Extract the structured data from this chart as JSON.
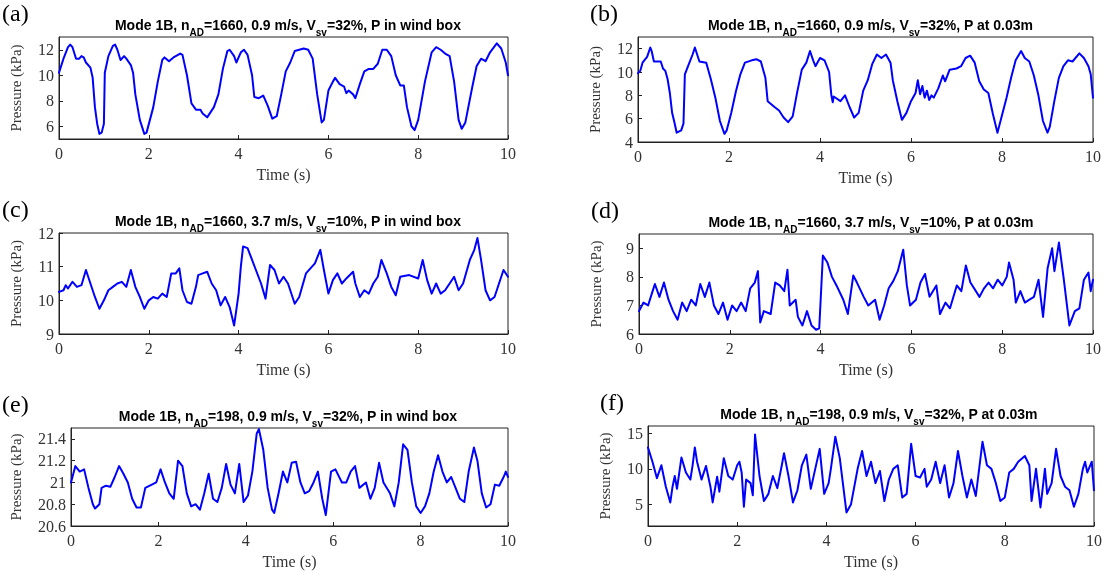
{
  "chart_data": [
    {
      "type": "line",
      "title": "Mode 1B, n$_{AD}$=1660, 0.9 m/s, V$_{sv}$=32%, P in wind box",
      "annotations": [
        "(a)"
      ],
      "xlabel": "Time (s)",
      "ylabel": "Pressure (kPa)",
      "xlim": [
        0,
        10
      ],
      "xticks": [
        0,
        2,
        4,
        6,
        8,
        10
      ],
      "ylim": [
        5,
        13
      ],
      "yticks": [
        6,
        8,
        10,
        12
      ],
      "grid": false,
      "color": "#0000ff",
      "x": [
        0,
        0.1,
        0.2,
        0.25,
        0.3,
        0.38,
        0.45,
        0.5,
        0.55,
        0.6,
        0.7,
        0.75,
        0.8,
        0.85,
        0.9,
        0.95,
        1.0,
        1.02,
        1.1,
        1.2,
        1.25,
        1.3,
        1.37,
        1.45,
        1.5,
        1.6,
        1.65,
        1.7,
        1.8,
        1.9,
        1.95,
        2.1,
        2.2,
        2.3,
        2.35,
        2.45,
        2.55,
        2.7,
        2.75,
        2.85,
        2.95,
        3.05,
        3.15,
        3.2,
        3.3,
        3.45,
        3.55,
        3.65,
        3.75,
        3.8,
        3.9,
        3.95,
        4.05,
        4.12,
        4.2,
        4.3,
        4.35,
        4.45,
        4.55,
        4.65,
        4.75,
        4.85,
        4.95,
        5.05,
        5.15,
        5.25,
        5.35,
        5.45,
        5.55,
        5.65,
        5.75,
        5.85,
        5.9,
        6.0,
        6.1,
        6.15,
        6.25,
        6.35,
        6.4,
        6.45,
        6.55,
        6.6,
        6.7,
        6.8,
        6.9,
        7.0,
        7.1,
        7.2,
        7.3,
        7.4,
        7.5,
        7.6,
        7.68,
        7.75,
        7.85,
        7.92,
        8.0,
        8.15,
        8.3,
        8.4,
        8.5,
        8.6,
        8.7,
        8.8,
        8.9,
        8.97,
        9.05,
        9.2,
        9.3,
        9.4,
        9.5,
        9.6,
        9.75,
        9.85,
        9.95,
        10.0
      ],
      "values": [
        10.2,
        11.3,
        12.2,
        12.4,
        12.2,
        11.3,
        11.3,
        11.5,
        11.4,
        11.0,
        10.6,
        9.8,
        7.5,
        6.2,
        5.4,
        5.5,
        6.2,
        10.2,
        11.5,
        12.3,
        12.4,
        12.0,
        11.2,
        11.5,
        11.3,
        10.8,
        10.2,
        8.5,
        6.5,
        5.4,
        5.5,
        7.5,
        9.5,
        11.2,
        11.4,
        11.1,
        11.4,
        11.7,
        11.6,
        10.0,
        7.8,
        7.3,
        7.3,
        7.0,
        6.7,
        7.5,
        8.5,
        10.5,
        11.9,
        12.0,
        11.5,
        11.0,
        11.8,
        12.0,
        11.6,
        10.0,
        8.3,
        8.2,
        8.4,
        7.6,
        6.6,
        6.8,
        8.5,
        10.3,
        11.0,
        11.9,
        12.0,
        12.1,
        12.0,
        11.3,
        8.5,
        6.3,
        6.5,
        8.8,
        9.5,
        9.8,
        9.3,
        9.1,
        8.6,
        8.8,
        8.5,
        8.2,
        9.3,
        10.3,
        10.5,
        10.5,
        10.9,
        12.0,
        12.0,
        11.5,
        10.0,
        9.2,
        9.2,
        7.5,
        6.0,
        5.7,
        6.5,
        9.5,
        11.8,
        12.2,
        12.0,
        11.7,
        11.5,
        9.5,
        6.5,
        5.8,
        6.3,
        9.0,
        10.7,
        11.3,
        11.1,
        11.8,
        12.5,
        12.1,
        11.0,
        10.0
      ]
    },
    {
      "type": "line",
      "title": "Mode 1B, n$_{AD}$=1660, 0.9 m/s, V$_{sv}$=32%, P at 0.03m",
      "annotations": [
        "(b)"
      ],
      "xlabel": "Time (s)",
      "ylabel": "Pressure (kPa)",
      "xlim": [
        0,
        10
      ],
      "xticks": [
        0,
        2,
        4,
        6,
        8,
        10
      ],
      "ylim": [
        4,
        13
      ],
      "yticks": [
        4,
        6,
        8,
        10,
        12
      ],
      "grid": false,
      "color": "#0000ff",
      "x": [
        0,
        0.05,
        0.1,
        0.2,
        0.27,
        0.3,
        0.35,
        0.5,
        0.55,
        0.6,
        0.65,
        0.7,
        0.75,
        0.8,
        0.85,
        0.95,
        1.0,
        1.03,
        1.1,
        1.2,
        1.25,
        1.3,
        1.35,
        1.5,
        1.6,
        1.7,
        1.8,
        1.9,
        1.95,
        2.05,
        2.15,
        2.25,
        2.35,
        2.5,
        2.6,
        2.7,
        2.8,
        2.85,
        3.0,
        3.1,
        3.2,
        3.3,
        3.4,
        3.5,
        3.6,
        3.7,
        3.78,
        3.85,
        3.9,
        4.0,
        4.1,
        4.2,
        4.25,
        4.28,
        4.3,
        4.45,
        4.55,
        4.65,
        4.75,
        4.85,
        4.95,
        5.05,
        5.15,
        5.25,
        5.35,
        5.45,
        5.55,
        5.6,
        5.7,
        5.8,
        5.9,
        6.0,
        6.1,
        6.15,
        6.2,
        6.25,
        6.3,
        6.35,
        6.4,
        6.45,
        6.5,
        6.6,
        6.7,
        6.75,
        6.85,
        7.0,
        7.1,
        7.2,
        7.3,
        7.4,
        7.5,
        7.6,
        7.7,
        7.8,
        7.9,
        8.0,
        8.1,
        8.2,
        8.3,
        8.42,
        8.5,
        8.6,
        8.7,
        8.8,
        8.9,
        9.0,
        9.05,
        9.15,
        9.25,
        9.35,
        9.45,
        9.55,
        9.7,
        9.8,
        9.9,
        9.95,
        10.0
      ],
      "values": [
        9.9,
        10.1,
        10.8,
        11.3,
        12.1,
        11.8,
        10.9,
        10.9,
        10.3,
        10.1,
        9.4,
        8.2,
        6.5,
        5.7,
        4.8,
        5.0,
        5.6,
        9.8,
        10.5,
        11.5,
        12.1,
        11.5,
        10.9,
        10.8,
        9.4,
        7.8,
        5.8,
        4.7,
        5.0,
        6.5,
        8.3,
        9.8,
        10.8,
        11.0,
        11.1,
        10.9,
        9.5,
        7.5,
        7.0,
        6.7,
        6.1,
        5.7,
        6.2,
        8.3,
        10.2,
        10.8,
        11.8,
        11.0,
        10.5,
        11.2,
        11.0,
        10.0,
        8.0,
        7.4,
        7.9,
        7.5,
        8.0,
        7.0,
        6.1,
        6.5,
        8.4,
        9.3,
        10.7,
        11.5,
        11.2,
        11.5,
        10.8,
        9.3,
        7.5,
        5.9,
        6.5,
        7.5,
        8.2,
        9.3,
        8.1,
        8.8,
        7.8,
        8.4,
        7.6,
        8.0,
        7.8,
        8.6,
        9.7,
        9.2,
        10.2,
        10.3,
        10.5,
        11.2,
        11.4,
        10.8,
        9.2,
        8.5,
        8.2,
        6.4,
        4.8,
        6.3,
        7.8,
        9.5,
        11.0,
        11.8,
        11.2,
        10.9,
        9.7,
        8.0,
        5.8,
        4.8,
        5.3,
        7.5,
        9.5,
        10.5,
        11.0,
        10.9,
        11.6,
        11.2,
        10.5,
        9.8,
        7.8
      ]
    },
    {
      "type": "line",
      "title": "Mode 1B, n$_{AD}$=1660, 3.7 m/s, V$_{sv}$=10%, P in wind box",
      "annotations": [
        "(c)"
      ],
      "xlabel": "Time (s)",
      "ylabel": "Pressure (kPa)",
      "xlim": [
        0,
        10
      ],
      "xticks": [
        0,
        2,
        4,
        6,
        8,
        10
      ],
      "ylim": [
        9,
        12
      ],
      "yticks": [
        9,
        10,
        11,
        12
      ],
      "grid": false,
      "color": "#0000ff",
      "x": [
        0,
        0.1,
        0.15,
        0.2,
        0.3,
        0.4,
        0.5,
        0.6,
        0.7,
        0.8,
        0.9,
        1.0,
        1.1,
        1.2,
        1.3,
        1.4,
        1.5,
        1.6,
        1.7,
        1.8,
        1.9,
        2.0,
        2.1,
        2.2,
        2.3,
        2.4,
        2.5,
        2.6,
        2.68,
        2.75,
        2.85,
        2.95,
        3.05,
        3.1,
        3.2,
        3.3,
        3.4,
        3.5,
        3.6,
        3.7,
        3.8,
        3.9,
        4.0,
        4.05,
        4.1,
        4.2,
        4.3,
        4.5,
        4.6,
        4.7,
        4.8,
        4.9,
        5.0,
        5.1,
        5.25,
        5.35,
        5.5,
        5.7,
        5.82,
        5.9,
        6.0,
        6.1,
        6.2,
        6.3,
        6.4,
        6.55,
        6.6,
        6.7,
        6.8,
        6.9,
        7.0,
        7.1,
        7.18,
        7.3,
        7.4,
        7.5,
        7.6,
        7.8,
        8.0,
        8.1,
        8.2,
        8.3,
        8.4,
        8.5,
        8.6,
        8.8,
        8.9,
        9.0,
        9.15,
        9.25,
        9.32,
        9.4,
        9.5,
        9.6,
        9.7,
        9.8,
        9.9,
        10.0
      ],
      "values": [
        10.25,
        10.3,
        10.45,
        10.35,
        10.55,
        10.4,
        10.45,
        10.9,
        10.5,
        10.1,
        9.75,
        10.0,
        10.3,
        10.4,
        10.5,
        10.55,
        10.4,
        10.9,
        10.4,
        10.1,
        9.75,
        10.0,
        10.1,
        10.05,
        10.2,
        10.1,
        10.8,
        10.8,
        10.95,
        10.3,
        9.95,
        9.9,
        10.4,
        10.75,
        10.8,
        10.85,
        10.5,
        10.3,
        9.85,
        10.1,
        9.8,
        9.25,
        10.2,
        11.0,
        11.6,
        11.55,
        11.2,
        10.5,
        10.05,
        11.05,
        10.9,
        10.5,
        10.7,
        10.5,
        9.9,
        10.1,
        10.8,
        11.1,
        11.5,
        10.9,
        10.2,
        10.6,
        10.8,
        10.5,
        10.65,
        10.85,
        10.5,
        10.1,
        10.3,
        10.2,
        10.5,
        10.7,
        11.2,
        10.8,
        10.4,
        10.15,
        10.7,
        10.75,
        10.65,
        11.2,
        10.6,
        10.2,
        10.5,
        10.2,
        10.3,
        10.7,
        10.3,
        10.5,
        11.2,
        11.5,
        11.85,
        11.2,
        10.3,
        10.0,
        10.1,
        10.5,
        10.9,
        10.7
      ]
    },
    {
      "type": "line",
      "title": "Mode 1B, n$_{AD}$=1660, 3.7 m/s, V$_{sv}$=10%, P at 0.03m",
      "annotations": [
        "(d)"
      ],
      "xlabel": "Time (s)",
      "ylabel": "Pressure (kPa)",
      "xlim": [
        0,
        10
      ],
      "xticks": [
        0,
        2,
        4,
        6,
        8,
        10
      ],
      "ylim": [
        6,
        9.5
      ],
      "yticks": [
        6,
        7,
        8,
        9
      ],
      "grid": false,
      "color": "#0000ff",
      "x": [
        0,
        0.1,
        0.2,
        0.3,
        0.35,
        0.45,
        0.55,
        0.65,
        0.75,
        0.85,
        0.95,
        1.05,
        1.15,
        1.25,
        1.35,
        1.45,
        1.55,
        1.65,
        1.75,
        1.85,
        1.95,
        2.05,
        2.15,
        2.25,
        2.35,
        2.45,
        2.55,
        2.62,
        2.67,
        2.75,
        2.9,
        3.0,
        3.1,
        3.2,
        3.27,
        3.32,
        3.45,
        3.5,
        3.6,
        3.7,
        3.8,
        3.9,
        3.97,
        4.05,
        4.15,
        4.25,
        4.35,
        4.5,
        4.6,
        4.72,
        4.8,
        4.95,
        5.05,
        5.2,
        5.3,
        5.4,
        5.5,
        5.6,
        5.7,
        5.82,
        5.9,
        5.97,
        6.1,
        6.2,
        6.3,
        6.4,
        6.55,
        6.63,
        6.75,
        6.85,
        7.0,
        7.1,
        7.2,
        7.3,
        7.5,
        7.6,
        7.7,
        7.8,
        7.9,
        8.0,
        8.1,
        8.15,
        8.25,
        8.3,
        8.4,
        8.5,
        8.6,
        8.7,
        8.8,
        8.9,
        9.0,
        9.1,
        9.15,
        9.25,
        9.35,
        9.48,
        9.6,
        9.7,
        9.8,
        9.9,
        9.95,
        10.0
      ],
      "values": [
        6.8,
        7.1,
        7.0,
        7.5,
        7.75,
        7.3,
        7.8,
        7.2,
        6.8,
        6.5,
        7.1,
        6.8,
        7.2,
        7.0,
        7.75,
        7.3,
        7.8,
        7.0,
        6.7,
        7.1,
        6.5,
        7.0,
        6.8,
        7.1,
        6.8,
        7.6,
        7.8,
        8.2,
        6.4,
        6.8,
        6.7,
        7.8,
        7.7,
        7.5,
        8.25,
        7.0,
        7.2,
        6.6,
        6.3,
        6.8,
        6.3,
        6.15,
        6.2,
        8.75,
        8.5,
        8.0,
        7.7,
        7.2,
        6.7,
        8.05,
        7.8,
        7.3,
        7.0,
        7.2,
        6.5,
        7.0,
        7.6,
        7.85,
        8.2,
        8.95,
        7.7,
        7.0,
        7.2,
        7.8,
        8.1,
        7.3,
        7.7,
        6.7,
        7.1,
        6.9,
        7.7,
        7.5,
        8.4,
        7.8,
        7.3,
        7.6,
        7.8,
        7.6,
        7.9,
        7.7,
        8.0,
        8.5,
        7.9,
        7.1,
        7.5,
        7.1,
        7.2,
        7.3,
        7.9,
        6.6,
        8.3,
        9.0,
        8.2,
        9.2,
        8.0,
        6.3,
        6.8,
        6.9,
        7.9,
        8.15,
        7.5,
        7.9
      ]
    },
    {
      "type": "line",
      "title": "Mode 1B, n$_{AD}$=198, 0.9 m/s, V$_{sv}$=32%, P in wind box",
      "annotations": [
        "(e)"
      ],
      "xlabel": "Time (s)",
      "ylabel": "Pressure (kPa)",
      "xlim": [
        0,
        10
      ],
      "xticks": [
        0,
        2,
        4,
        6,
        8,
        10
      ],
      "ylim": [
        20.6,
        21.5
      ],
      "yticks": [
        20.6,
        20.8,
        21,
        21.2,
        21.4
      ],
      "grid": false,
      "color": "#0000ff",
      "x": [
        0,
        0.1,
        0.2,
        0.3,
        0.4,
        0.5,
        0.55,
        0.65,
        0.7,
        0.8,
        0.9,
        1.0,
        1.1,
        1.2,
        1.3,
        1.4,
        1.5,
        1.6,
        1.7,
        1.85,
        1.95,
        2.05,
        2.15,
        2.25,
        2.35,
        2.45,
        2.55,
        2.65,
        2.75,
        2.85,
        2.95,
        3.05,
        3.15,
        3.25,
        3.35,
        3.45,
        3.55,
        3.65,
        3.75,
        3.85,
        3.95,
        4.05,
        4.15,
        4.25,
        4.3,
        4.4,
        4.5,
        4.6,
        4.65,
        4.75,
        4.85,
        4.95,
        5.05,
        5.15,
        5.25,
        5.35,
        5.45,
        5.55,
        5.65,
        5.75,
        5.83,
        5.95,
        6.05,
        6.2,
        6.3,
        6.4,
        6.5,
        6.6,
        6.75,
        6.85,
        6.95,
        7.05,
        7.15,
        7.3,
        7.4,
        7.5,
        7.6,
        7.7,
        7.8,
        7.9,
        8.0,
        8.1,
        8.2,
        8.3,
        8.4,
        8.5,
        8.6,
        8.7,
        8.8,
        8.9,
        9.0,
        9.1,
        9.22,
        9.3,
        9.4,
        9.5,
        9.6,
        9.7,
        9.8,
        9.9,
        9.95,
        10.0
      ],
      "values": [
        21.0,
        21.15,
        21.1,
        21.12,
        20.95,
        20.8,
        20.76,
        20.8,
        20.95,
        20.97,
        20.96,
        21.05,
        21.15,
        21.08,
        21.0,
        20.85,
        20.77,
        20.77,
        20.95,
        20.98,
        21.0,
        21.12,
        21.0,
        20.9,
        20.85,
        21.2,
        21.15,
        20.9,
        20.78,
        20.8,
        20.75,
        20.9,
        21.08,
        20.85,
        20.82,
        20.95,
        21.17,
        20.98,
        20.9,
        21.17,
        20.82,
        20.88,
        21.1,
        21.45,
        21.49,
        21.3,
        20.95,
        20.75,
        20.72,
        20.9,
        21.1,
        21.0,
        21.18,
        21.19,
        21.0,
        20.9,
        20.92,
        21.0,
        21.1,
        20.85,
        20.7,
        21.1,
        21.12,
        21.0,
        21.0,
        21.1,
        21.15,
        20.95,
        21.0,
        20.85,
        20.95,
        21.18,
        21.0,
        20.9,
        20.78,
        21.0,
        21.35,
        21.3,
        21.0,
        20.78,
        20.72,
        20.78,
        20.9,
        21.1,
        21.25,
        21.1,
        21.0,
        21.05,
        20.95,
        20.85,
        20.82,
        21.1,
        21.32,
        21.2,
        20.9,
        20.77,
        20.8,
        20.98,
        20.97,
        21.05,
        21.1,
        21.05
      ]
    },
    {
      "type": "line",
      "title": "Mode 1B, n$_{AD}$=198, 0.9 m/s, V$_{sv}$=32%, P at 0.03m",
      "annotations": [
        "(f)"
      ],
      "xlabel": "Time (s)",
      "ylabel": "Pressure (kPa)",
      "xlim": [
        0,
        10
      ],
      "xticks": [
        0,
        2,
        4,
        6,
        8,
        10
      ],
      "ylim": [
        2,
        16
      ],
      "yticks": [
        5,
        10,
        15
      ],
      "grid": false,
      "color": "#0000ff",
      "x": [
        0,
        0.1,
        0.2,
        0.3,
        0.4,
        0.5,
        0.55,
        0.6,
        0.65,
        0.75,
        0.85,
        0.95,
        1.0,
        1.05,
        1.1,
        1.2,
        1.3,
        1.4,
        1.45,
        1.55,
        1.6,
        1.7,
        1.8,
        1.9,
        2.0,
        2.05,
        2.1,
        2.15,
        2.2,
        2.3,
        2.35,
        2.4,
        2.5,
        2.6,
        2.7,
        2.8,
        2.9,
        3.0,
        3.05,
        3.15,
        3.25,
        3.35,
        3.45,
        3.55,
        3.65,
        3.75,
        3.85,
        3.95,
        4.05,
        4.1,
        4.2,
        4.3,
        4.45,
        4.55,
        4.7,
        4.8,
        4.9,
        5.0,
        5.1,
        5.2,
        5.3,
        5.4,
        5.5,
        5.6,
        5.7,
        5.8,
        5.9,
        6.0,
        6.1,
        6.2,
        6.25,
        6.35,
        6.45,
        6.55,
        6.65,
        6.75,
        6.85,
        6.95,
        7.05,
        7.15,
        7.25,
        7.35,
        7.5,
        7.6,
        7.7,
        7.8,
        7.9,
        8.0,
        8.1,
        8.2,
        8.3,
        8.45,
        8.55,
        8.6,
        8.7,
        8.8,
        8.9,
        8.95,
        9.05,
        9.15,
        9.25,
        9.35,
        9.45,
        9.55,
        9.65,
        9.75,
        9.8,
        9.85,
        9.95,
        10.0
      ],
      "values": [
        13.0,
        11.0,
        8.7,
        10.5,
        7.5,
        5.3,
        7.5,
        9.0,
        7.2,
        11.6,
        9.5,
        8.5,
        10.5,
        13.0,
        11.0,
        8.5,
        10.4,
        7.5,
        5.3,
        8.9,
        6.8,
        11.5,
        9.0,
        8.5,
        10.5,
        11.0,
        9.5,
        4.7,
        8.5,
        8.0,
        6.3,
        14.8,
        9.0,
        5.5,
        6.5,
        9.0,
        7.3,
        10.5,
        12.2,
        9.0,
        5.3,
        7.0,
        10.5,
        12.0,
        7.2,
        10.0,
        12.8,
        6.5,
        8.0,
        10.0,
        14.5,
        11.5,
        3.9,
        5.0,
        10.0,
        12.5,
        9.0,
        11.0,
        8.0,
        9.7,
        5.5,
        8.5,
        10.0,
        10.5,
        6.0,
        6.5,
        13.5,
        9.0,
        8.8,
        10.0,
        7.5,
        8.5,
        11.0,
        8.0,
        10.5,
        6.0,
        8.0,
        12.5,
        9.0,
        6.0,
        8.5,
        6.2,
        13.8,
        10.5,
        10.0,
        8.0,
        5.5,
        6.0,
        9.5,
        10.0,
        11.0,
        11.8,
        10.5,
        5.5,
        10.0,
        4.6,
        10.0,
        6.5,
        8.0,
        12.8,
        9.0,
        7.5,
        7.0,
        4.7,
        6.5,
        10.0,
        11.0,
        9.5,
        11.0,
        7.0
      ]
    }
  ]
}
